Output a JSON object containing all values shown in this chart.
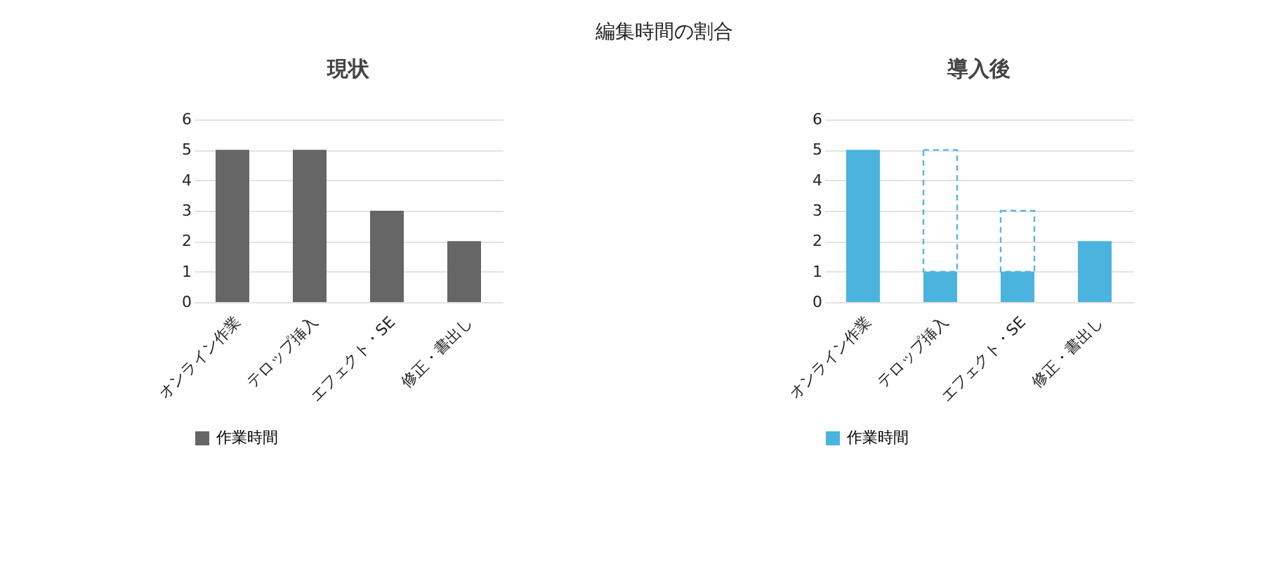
{
  "chart_data": [
    {
      "type": "other",
      "title": "編集時間の割合"
    },
    {
      "type": "bar",
      "title": "現状",
      "categories": [
        "オンライン作業",
        "テロップ挿入",
        "エフェクト・SE",
        "修正・書出し"
      ],
      "ylim": [
        0,
        6
      ],
      "yticks": [
        0,
        1,
        2,
        3,
        4,
        5,
        6
      ],
      "grid": "y",
      "legend": "bottom",
      "series": [
        {
          "name": "作業時間",
          "color": "#666666",
          "values": [
            5,
            5,
            3,
            2
          ]
        }
      ]
    },
    {
      "type": "bar",
      "title": "導入後",
      "categories": [
        "オンライン作業",
        "テロップ挿入",
        "エフェクト・SE",
        "修正・書出し"
      ],
      "ylim": [
        0,
        6
      ],
      "yticks": [
        0,
        1,
        2,
        3,
        4,
        5,
        6
      ],
      "grid": "y",
      "legend": "bottom",
      "stacked": true,
      "series": [
        {
          "name": "作業時間",
          "color": "#4ab3de",
          "values": [
            5,
            1,
            1,
            2
          ]
        },
        {
          "color": "#5bb4e0",
          "line_style": "dashed",
          "values": [
            null,
            4,
            2,
            null
          ]
        }
      ]
    }
  ]
}
